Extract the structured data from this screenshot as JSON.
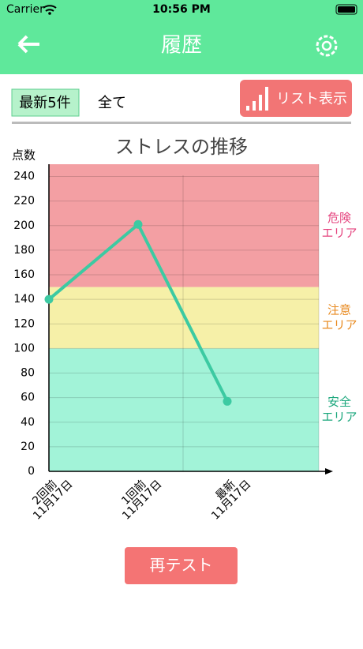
{
  "status_bar": {
    "carrier": "Carrier",
    "time": "10:56 PM"
  },
  "nav": {
    "title": "履歴"
  },
  "tabs": {
    "items": [
      "最新5件",
      "全て"
    ],
    "list_button": "リスト表示"
  },
  "chart_data": {
    "type": "line",
    "title": "ストレスの推移",
    "y_label": "点数",
    "categories": [
      "2回前",
      "1回前",
      "最新"
    ],
    "dates": [
      "11月17日",
      "11月17日",
      "11月17日"
    ],
    "series": [
      {
        "color": "#3ccaa2",
        "values": [
          140,
          201,
          57
        ]
      }
    ],
    "ylim": [
      0,
      250
    ],
    "yticks": [
      0,
      20,
      40,
      60,
      80,
      100,
      120,
      140,
      160,
      180,
      200,
      220,
      240
    ],
    "grid": true,
    "zones": [
      {
        "from": 150,
        "to": 250,
        "color": "#f39fa3",
        "label_color": "#e5457f",
        "label": [
          "危険",
          "エリア"
        ]
      },
      {
        "from": 100,
        "to": 150,
        "color": "#f6f0a8",
        "label_color": "#e8891e",
        "label": [
          "注意",
          "エリア"
        ]
      },
      {
        "from": 0,
        "to": 100,
        "color": "#a2f3d8",
        "label_color": "#1ba77c",
        "label": [
          "安全",
          "エリア"
        ]
      }
    ]
  },
  "retest_button": "再テスト"
}
